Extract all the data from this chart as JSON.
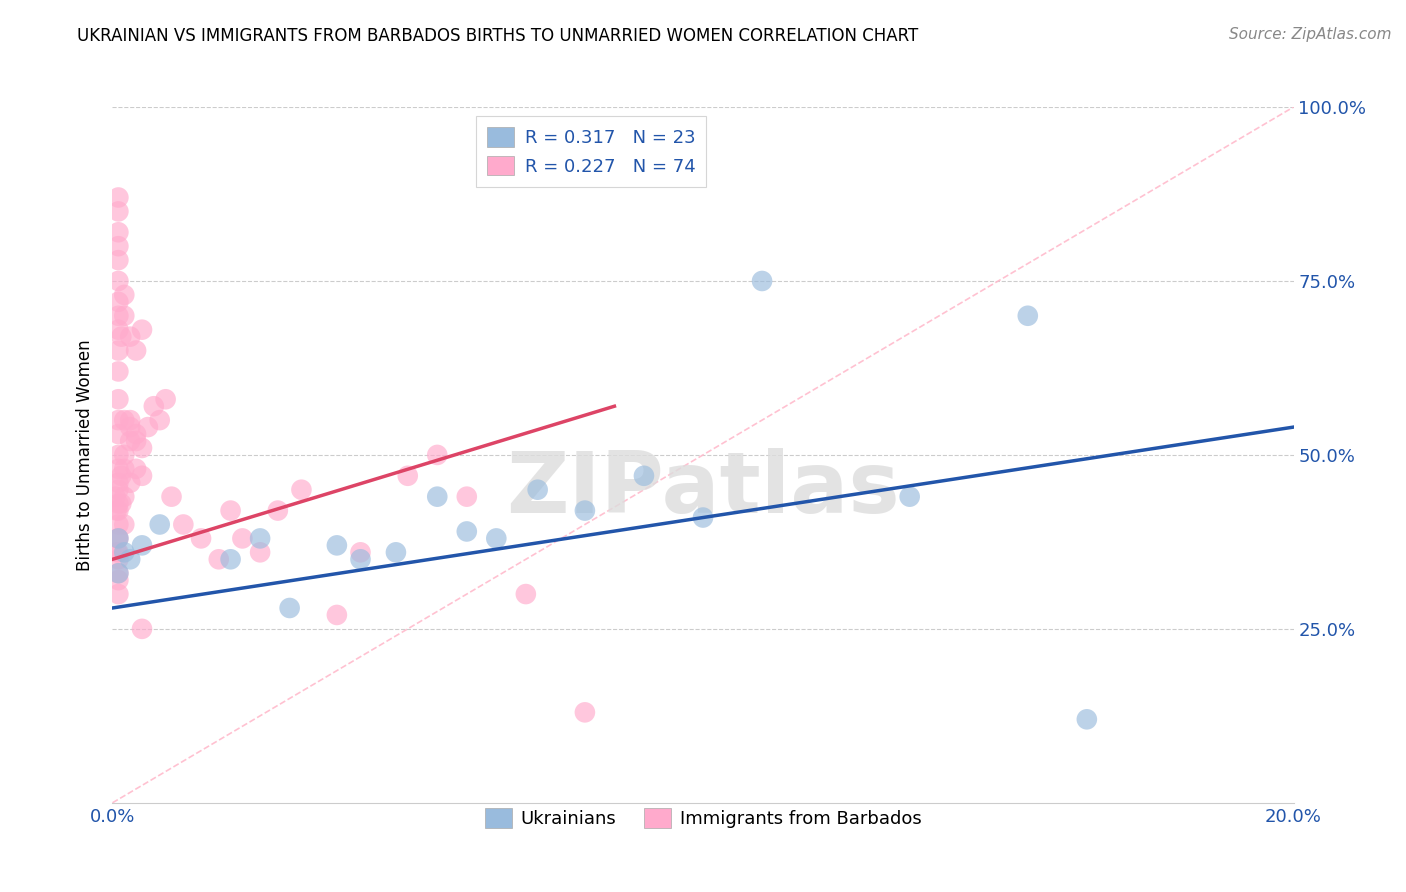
{
  "title": "UKRAINIAN VS IMMIGRANTS FROM BARBADOS BIRTHS TO UNMARRIED WOMEN CORRELATION CHART",
  "source": "Source: ZipAtlas.com",
  "ylabel": "Births to Unmarried Women",
  "xlim": [
    0.0,
    0.2
  ],
  "ylim": [
    0.0,
    1.0
  ],
  "blue_color": "#99BBDD",
  "pink_color": "#FFAACC",
  "blue_line_color": "#2255AA",
  "pink_line_color": "#DD4466",
  "ref_line_color": "#FFBBCC",
  "R_blue": 0.317,
  "N_blue": 23,
  "R_pink": 0.227,
  "N_pink": 74,
  "legend_label_blue": "Ukrainians",
  "legend_label_pink": "Immigrants from Barbados",
  "watermark": "ZIPatlas",
  "legend_text_color": "#2255AA",
  "axis_label_color": "#2255AA",
  "blue_scatter_x": [
    0.001,
    0.001,
    0.002,
    0.003,
    0.005,
    0.008,
    0.02,
    0.025,
    0.03,
    0.038,
    0.042,
    0.048,
    0.055,
    0.06,
    0.065,
    0.072,
    0.08,
    0.09,
    0.1,
    0.11,
    0.135,
    0.155,
    0.165
  ],
  "blue_scatter_y": [
    0.38,
    0.33,
    0.36,
    0.35,
    0.37,
    0.4,
    0.35,
    0.38,
    0.28,
    0.37,
    0.35,
    0.36,
    0.44,
    0.39,
    0.38,
    0.45,
    0.42,
    0.47,
    0.41,
    0.75,
    0.44,
    0.7,
    0.12
  ],
  "pink_scatter_x": [
    0.0005,
    0.0007,
    0.001,
    0.001,
    0.001,
    0.001,
    0.001,
    0.001,
    0.001,
    0.001,
    0.001,
    0.001,
    0.001,
    0.0015,
    0.0015,
    0.002,
    0.002,
    0.002,
    0.002,
    0.003,
    0.003,
    0.003,
    0.004,
    0.004,
    0.005,
    0.005,
    0.006,
    0.007,
    0.008,
    0.009,
    0.001,
    0.001,
    0.001,
    0.001,
    0.001,
    0.0015,
    0.001,
    0.001,
    0.001,
    0.002,
    0.002,
    0.003,
    0.004,
    0.005,
    0.001,
    0.001,
    0.001,
    0.001,
    0.001,
    0.0008,
    0.0009,
    0.001,
    0.001,
    0.001,
    0.01,
    0.012,
    0.015,
    0.018,
    0.02,
    0.022,
    0.025,
    0.028,
    0.032,
    0.038,
    0.042,
    0.05,
    0.055,
    0.06,
    0.07,
    0.08,
    0.002,
    0.003,
    0.004,
    0.005
  ],
  "pink_scatter_y": [
    0.44,
    0.42,
    0.36,
    0.4,
    0.43,
    0.46,
    0.5,
    0.53,
    0.55,
    0.48,
    0.38,
    0.42,
    0.45,
    0.43,
    0.47,
    0.44,
    0.48,
    0.5,
    0.4,
    0.46,
    0.52,
    0.55,
    0.48,
    0.53,
    0.47,
    0.51,
    0.54,
    0.57,
    0.55,
    0.58,
    0.58,
    0.62,
    0.65,
    0.68,
    0.7,
    0.67,
    0.72,
    0.75,
    0.78,
    0.7,
    0.73,
    0.67,
    0.65,
    0.68,
    0.82,
    0.85,
    0.87,
    0.8,
    0.33,
    0.36,
    0.38,
    0.3,
    0.32,
    0.35,
    0.44,
    0.4,
    0.38,
    0.35,
    0.42,
    0.38,
    0.36,
    0.42,
    0.45,
    0.27,
    0.36,
    0.47,
    0.5,
    0.44,
    0.3,
    0.13,
    0.55,
    0.54,
    0.52,
    0.25
  ],
  "blue_trend_x0": 0.0,
  "blue_trend_x1": 0.2,
  "blue_trend_y0": 0.28,
  "blue_trend_y1": 0.54,
  "pink_trend_x0": 0.0,
  "pink_trend_x1": 0.085,
  "pink_trend_y0": 0.35,
  "pink_trend_y1": 0.57
}
